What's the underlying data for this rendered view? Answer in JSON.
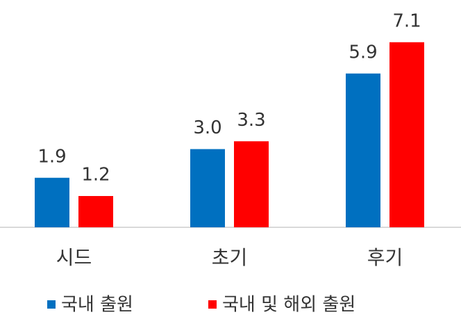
{
  "chart_data": {
    "type": "bar",
    "categories": [
      "시드",
      "초기",
      "후기"
    ],
    "series": [
      {
        "name": "국내 출원",
        "color": "#0070c0",
        "values": [
          1.9,
          3.0,
          5.9
        ],
        "value_labels": [
          "1.9",
          "3.0",
          "5.9"
        ]
      },
      {
        "name": "국내 및 해외 출원",
        "color": "#ff0000",
        "values": [
          1.2,
          3.3,
          7.1
        ]
      }
    ]
  }
}
